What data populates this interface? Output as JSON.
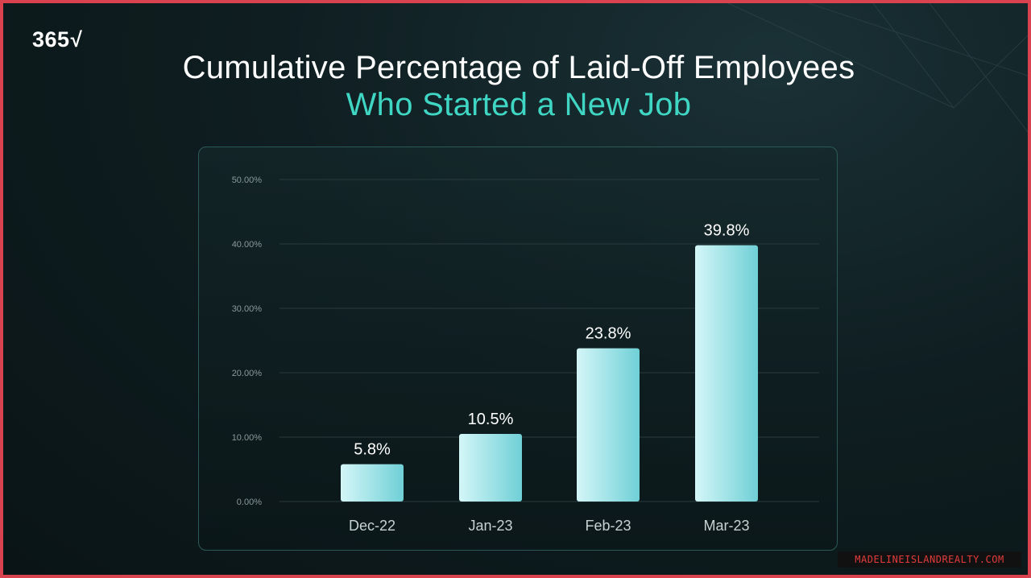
{
  "brand": {
    "logo_text": "365",
    "logo_mark": "√"
  },
  "chart_data": {
    "type": "bar",
    "title": "Cumulative Percentage of Laid-Off Employees",
    "subtitle": "Who Started a New Job",
    "categories": [
      "Dec-22",
      "Jan-23",
      "Feb-23",
      "Mar-23"
    ],
    "values": [
      5.8,
      10.5,
      23.8,
      39.8
    ],
    "data_labels": [
      "5.8%",
      "10.5%",
      "23.8%",
      "39.8%"
    ],
    "yticks": [
      "0.00%",
      "10.00%",
      "20.00%",
      "30.00%",
      "40.00%",
      "50.00%"
    ],
    "ylim": [
      0,
      50
    ],
    "grid": true,
    "xlabel": "",
    "ylabel": ""
  },
  "colors": {
    "title": "#ffffff",
    "subtitle": "#3fd6c4",
    "bar_light": "#d4f6f8",
    "bar_dark": "#6fd0d6",
    "grid": "#2a3a3d",
    "tick_text": "#8a9a9c"
  },
  "watermark": {
    "text": "MADELINEISLANDREALTY.COM"
  }
}
